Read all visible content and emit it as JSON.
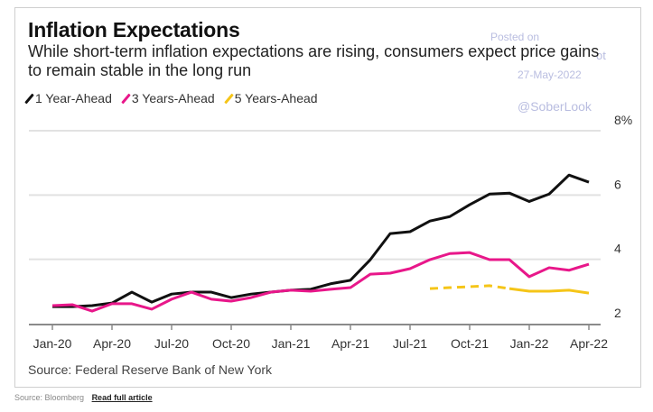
{
  "header": {
    "title": "Inflation Expectations",
    "subtitle": "While short-term inflation expectations are rising, consumers expect price gains to remain stable in the long run"
  },
  "legend": [
    {
      "label": "1 Year-Ahead",
      "color": "#111111"
    },
    {
      "label": "3 Years-Ahead",
      "color": "#e8178a"
    },
    {
      "label": "5 Years-Ahead",
      "color": "#f5c518"
    }
  ],
  "watermark": {
    "posted_on": "Posted on",
    "partial": "ot",
    "date": "27-May-2022",
    "handle": "@SoberLook"
  },
  "source": "Source: Federal Reserve Bank of New York",
  "footer": {
    "source": "Source: Bloomberg",
    "link": "Read full article"
  },
  "chart_data": {
    "type": "line",
    "title": "Inflation Expectations",
    "subtitle": "While short-term inflation expectations are rising, consumers expect price gains to remain stable in the long run",
    "xlabel": "",
    "ylabel": "",
    "y_unit": "%",
    "ylim": [
      2,
      8
    ],
    "yticks": [
      2,
      4,
      6,
      8
    ],
    "ytick_labels": [
      "2",
      "4",
      "6",
      "8%"
    ],
    "y_axis_side": "right",
    "grid": true,
    "legend_position": "top-left",
    "x": [
      "Jan-20",
      "Feb-20",
      "Mar-20",
      "Apr-20",
      "May-20",
      "Jun-20",
      "Jul-20",
      "Aug-20",
      "Sep-20",
      "Oct-20",
      "Nov-20",
      "Dec-20",
      "Jan-21",
      "Feb-21",
      "Mar-21",
      "Apr-21",
      "May-21",
      "Jun-21",
      "Jul-21",
      "Aug-21",
      "Sep-21",
      "Oct-21",
      "Nov-21",
      "Dec-21",
      "Jan-22",
      "Feb-22",
      "Mar-22",
      "Apr-22"
    ],
    "xtick_labels": [
      "Jan-20",
      "Apr-20",
      "Jul-20",
      "Oct-20",
      "Jan-21",
      "Apr-21",
      "Jul-21",
      "Oct-21",
      "Jan-22",
      "Apr-22"
    ],
    "series": [
      {
        "name": "1 Year-Ahead",
        "color": "#111111",
        "values": [
          2.53,
          2.53,
          2.56,
          2.64,
          2.98,
          2.67,
          2.92,
          2.98,
          2.98,
          2.81,
          2.92,
          2.98,
          3.04,
          3.07,
          3.24,
          3.35,
          3.99,
          4.8,
          4.86,
          5.19,
          5.33,
          5.7,
          6.03,
          6.06,
          5.8,
          6.03,
          6.62,
          6.4
        ]
      },
      {
        "name": "3 Years-Ahead",
        "color": "#e8178a",
        "values": [
          2.56,
          2.59,
          2.39,
          2.62,
          2.62,
          2.45,
          2.76,
          2.98,
          2.76,
          2.7,
          2.81,
          2.98,
          3.04,
          3.01,
          3.07,
          3.12,
          3.54,
          3.57,
          3.71,
          3.99,
          4.18,
          4.21,
          3.99,
          3.99,
          3.46,
          3.74,
          3.66,
          3.85
        ]
      },
      {
        "name": "5 Years-Ahead",
        "color": "#f5c518",
        "values": [
          null,
          null,
          null,
          null,
          null,
          null,
          null,
          null,
          null,
          null,
          null,
          null,
          null,
          null,
          null,
          null,
          null,
          null,
          null,
          3.09,
          3.12,
          3.15,
          3.18,
          3.09,
          3.01,
          3.01,
          3.04,
          2.95
        ],
        "dashed_until": "Dec-21"
      }
    ],
    "source": "Source: Federal Reserve Bank of New York"
  }
}
